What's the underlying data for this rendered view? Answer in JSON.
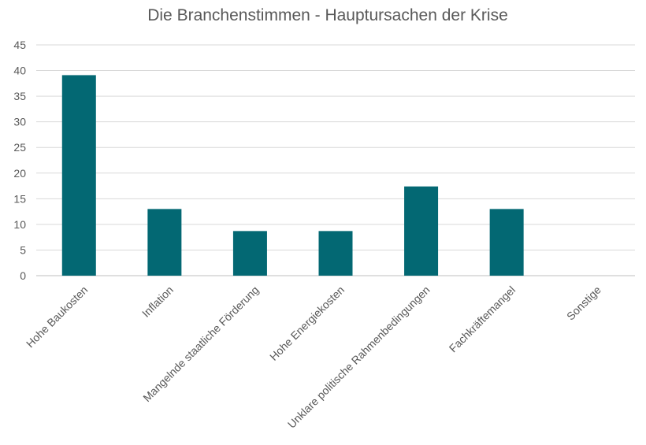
{
  "chart_data": {
    "type": "bar",
    "title": "Die Branchenstimmen - Hauptursachen der Krise",
    "xlabel": "",
    "ylabel": "",
    "categories": [
      "Hohe Baukosten",
      "Inflation",
      "Mangelnde staatliche Förderung",
      "Hohe Energiekosten",
      "Unklare politische Rahmenbedingungen",
      "Fachkräftemangel",
      "Sonstige"
    ],
    "values": [
      39.1,
      13.0,
      8.7,
      8.7,
      17.4,
      13.0,
      0
    ],
    "ylim": [
      0,
      45
    ],
    "yticks": [
      "0",
      "5",
      "10",
      "15",
      "20",
      "25",
      "30",
      "35",
      "40",
      "45"
    ],
    "grid": true,
    "bar_color": "#036873",
    "grid_color": "#d9d9d9"
  }
}
